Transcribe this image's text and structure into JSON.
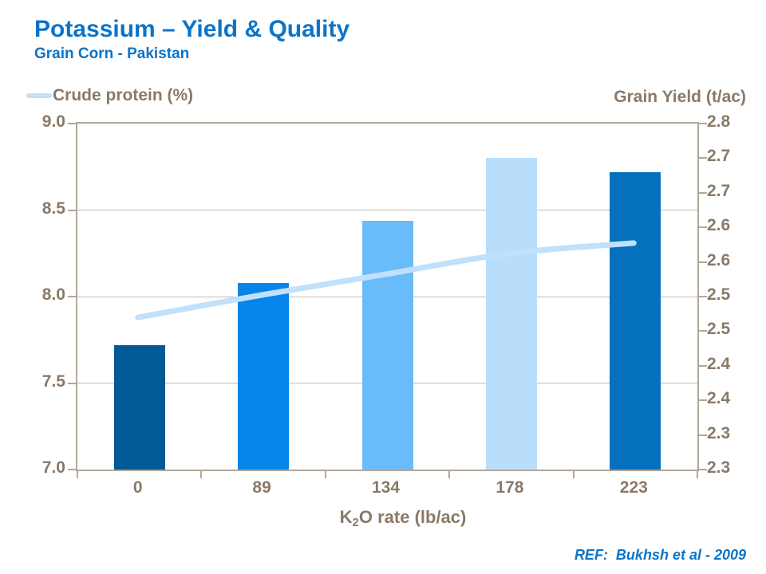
{
  "slide": {
    "title": "Potassium – Yield & Quality",
    "subtitle": "Grain Corn - Pakistan",
    "ref_note": "REF:  Bukhsh et al - 2009",
    "colors": {
      "heading_blue": "#0C74C8",
      "axis_text": "#8A7968",
      "plot_border": "#B2A79A",
      "gridline": "#C3B9AD",
      "line_blue": "#C0E0FB"
    }
  },
  "legend": {
    "crude_protein_label": "Crude protein (%)"
  },
  "right_axis_title": "Grain Yield (t/ac)",
  "x_axis_title": {
    "prefix": "K",
    "subscript": "2",
    "suffix": "O rate (lb/ac)"
  },
  "chart_data": {
    "type": "bar",
    "subtype": "combo-bar-line-dual-axis",
    "title": "Potassium – Yield & Quality",
    "subtitle": "Grain Corn - Pakistan",
    "categories": [
      "0",
      "89",
      "134",
      "178",
      "223"
    ],
    "xlabel": "K2O rate (lb/ac)",
    "series": [
      {
        "name": "Grain Yield (t/ac)",
        "type": "bar",
        "axis": "right",
        "values": [
          2.48,
          2.57,
          2.66,
          2.75,
          2.73
        ],
        "bar_colors": [
          "#005A96",
          "#0584E9",
          "#69BCFA",
          "#B9DEFC",
          "#0470BE"
        ]
      },
      {
        "name": "Crude protein (%)",
        "type": "line",
        "axis": "left",
        "values": [
          7.87,
          8.0,
          8.12,
          8.24,
          8.3
        ],
        "color": "#C0E0FB"
      }
    ],
    "left_axis": {
      "title": "Crude protein (%)",
      "min": 7.0,
      "max": 9.0,
      "tick_labels": [
        "9.0",
        "8.5",
        "8.0",
        "7.5",
        "7.0"
      ]
    },
    "right_axis": {
      "title": "Grain Yield (t/ac)",
      "min": 2.3,
      "max": 2.8,
      "tick_labels": [
        "2.8",
        "2.7",
        "2.7",
        "2.6",
        "2.6",
        "2.5",
        "2.5",
        "2.4",
        "2.4",
        "2.3",
        "2.3"
      ]
    },
    "grid": "horizontal",
    "legend_position": "top-left",
    "annotations": [
      "REF:  Bukhsh et al - 2009"
    ]
  }
}
